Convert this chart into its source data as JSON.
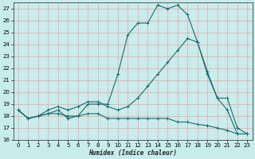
{
  "xlabel": "Humidex (Indice chaleur)",
  "xlim": [
    -0.5,
    23.5
  ],
  "ylim": [
    16,
    27.5
  ],
  "yticks": [
    16,
    17,
    18,
    19,
    20,
    21,
    22,
    23,
    24,
    25,
    26,
    27
  ],
  "xticks": [
    0,
    1,
    2,
    3,
    4,
    5,
    6,
    7,
    8,
    9,
    10,
    11,
    12,
    13,
    14,
    15,
    16,
    17,
    18,
    19,
    20,
    21,
    22,
    23
  ],
  "bg_color": "#c8ecec",
  "grid_major_color": "#f0a0a0",
  "grid_minor_color": "#d8eded",
  "line_color": "#1a6b6b",
  "curve1_x": [
    0,
    1,
    2,
    3,
    4,
    5,
    6,
    7,
    8,
    9,
    10,
    11,
    12,
    13,
    14,
    15,
    16,
    17,
    18,
    19,
    20,
    21,
    22,
    23
  ],
  "curve1_y": [
    18.5,
    17.8,
    18.0,
    18.2,
    18.2,
    18.0,
    18.0,
    19.0,
    19.0,
    19.0,
    21.5,
    24.8,
    25.8,
    25.8,
    27.3,
    27.0,
    27.3,
    26.5,
    24.2,
    21.5,
    19.5,
    18.5,
    16.5,
    16.5
  ],
  "curve2_x": [
    0,
    1,
    2,
    3,
    4,
    5,
    6,
    7,
    8,
    9,
    10,
    11,
    12,
    13,
    14,
    15,
    16,
    17,
    18,
    19,
    20,
    21,
    22,
    23
  ],
  "curve2_y": [
    18.5,
    17.8,
    18.0,
    18.2,
    18.5,
    17.8,
    18.0,
    18.2,
    18.2,
    17.8,
    17.8,
    17.8,
    17.8,
    17.8,
    17.8,
    17.8,
    17.5,
    17.5,
    17.3,
    17.2,
    17.0,
    16.8,
    16.5,
    16.5
  ],
  "curve3_x": [
    0,
    1,
    2,
    3,
    4,
    5,
    6,
    7,
    8,
    9,
    10,
    11,
    12,
    13,
    14,
    15,
    16,
    17,
    18,
    19,
    20,
    21,
    22,
    23
  ],
  "curve3_y": [
    18.5,
    17.8,
    18.0,
    18.5,
    18.8,
    18.5,
    18.8,
    19.2,
    19.2,
    18.8,
    18.5,
    18.8,
    19.5,
    20.5,
    21.5,
    22.5,
    23.5,
    24.5,
    24.2,
    21.7,
    19.5,
    19.5,
    17.0,
    16.5
  ]
}
